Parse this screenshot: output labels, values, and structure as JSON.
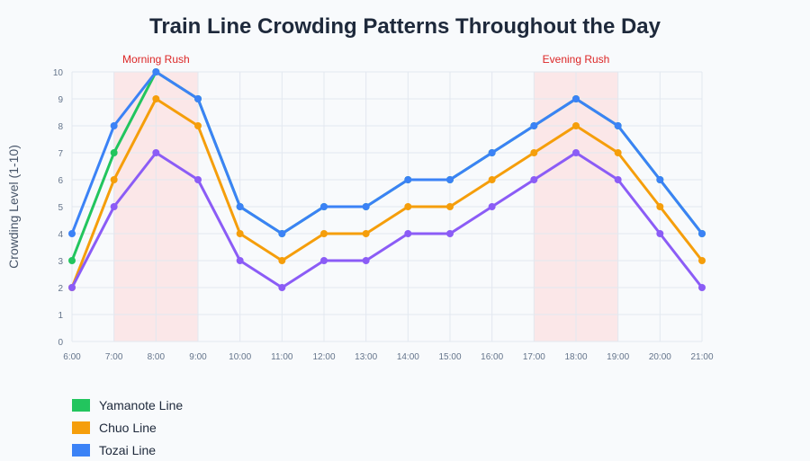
{
  "chart_data": {
    "type": "line",
    "title": "Train Line Crowding Patterns Throughout the Day",
    "xlabel": "",
    "ylabel": "Crowding Level (1-10)",
    "ylim": [
      0,
      10
    ],
    "yticks": [
      "0",
      "1",
      "2",
      "3",
      "4",
      "5",
      "6",
      "7",
      "8",
      "9",
      "10"
    ],
    "categories": [
      "6:00",
      "7:00",
      "8:00",
      "9:00",
      "10:00",
      "11:00",
      "12:00",
      "13:00",
      "14:00",
      "15:00",
      "16:00",
      "17:00",
      "18:00",
      "19:00",
      "20:00",
      "21:00"
    ],
    "grid": true,
    "legend_position": "bottom-left",
    "annotations": [
      {
        "label": "Morning Rush",
        "from": "7:00",
        "to": "9:00",
        "color": "#dc2626"
      },
      {
        "label": "Evening Rush",
        "from": "17:00",
        "to": "19:00",
        "color": "#dc2626"
      }
    ],
    "series": [
      {
        "name": "Yamanote Line",
        "color": "#22c55e",
        "values": [
          3,
          7,
          10,
          9,
          5,
          4,
          5,
          5,
          6,
          6,
          7,
          8,
          9,
          8,
          6,
          4
        ]
      },
      {
        "name": "Chuo Line",
        "color": "#f59e0b",
        "values": [
          2,
          6,
          9,
          8,
          4,
          3,
          4,
          4,
          5,
          5,
          6,
          7,
          8,
          7,
          5,
          3
        ]
      },
      {
        "name": "Tozai Line",
        "color": "#3b82f6",
        "values": [
          4,
          8,
          10,
          9,
          5,
          4,
          5,
          5,
          6,
          6,
          7,
          8,
          9,
          8,
          6,
          4
        ]
      },
      {
        "name": "",
        "color": "#8b5cf6",
        "values": [
          2,
          5,
          7,
          6,
          3,
          2,
          3,
          3,
          4,
          4,
          5,
          6,
          7,
          6,
          4,
          2
        ]
      }
    ]
  }
}
